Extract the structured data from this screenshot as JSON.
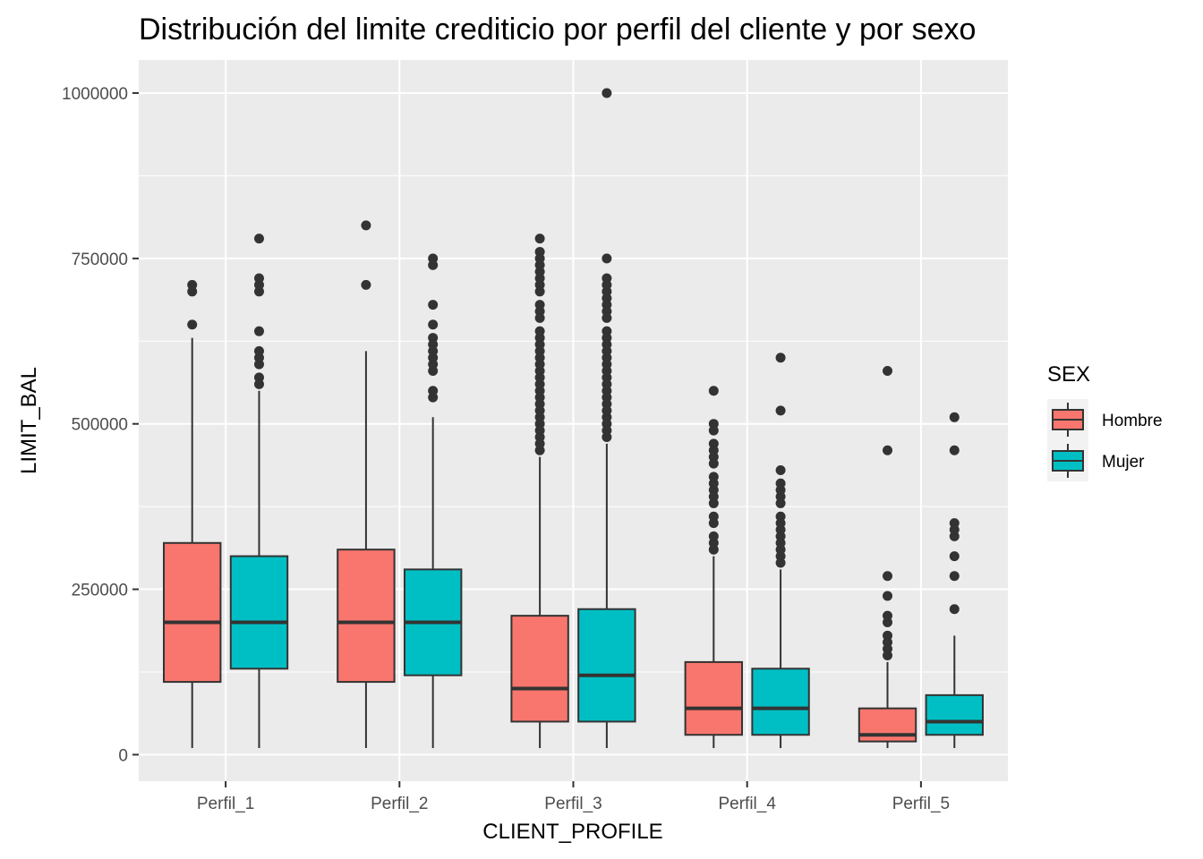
{
  "chart_data": {
    "type": "box",
    "title": "Distribución del limite crediticio por perfil del cliente y por sexo",
    "xlabel": "CLIENT_PROFILE",
    "ylabel": "LIMIT_BAL",
    "categories": [
      "Perfil_1",
      "Perfil_2",
      "Perfil_3",
      "Perfil_4",
      "Perfil_5"
    ],
    "y_ticks": [
      0,
      250000,
      500000,
      750000,
      1000000
    ],
    "y_tick_labels": [
      "0",
      "250000",
      "500000",
      "750000",
      "1000000"
    ],
    "ylim": [
      -40000,
      1050000
    ],
    "grid": true,
    "legend": {
      "title": "SEX",
      "position": "right",
      "entries": [
        {
          "label": "Hombre",
          "color": "#F8766D"
        },
        {
          "label": "Mujer",
          "color": "#00BFC4"
        }
      ]
    },
    "series": [
      {
        "name": "Hombre",
        "color": "#F8766D",
        "boxes": [
          {
            "category": "Perfil_1",
            "whisker_low": 10000,
            "q1": 110000,
            "median": 200000,
            "q3": 320000,
            "whisker_high": 630000,
            "outliers": [
              650000,
              700000,
              710000
            ]
          },
          {
            "category": "Perfil_2",
            "whisker_low": 10000,
            "q1": 110000,
            "median": 200000,
            "q3": 310000,
            "whisker_high": 610000,
            "outliers": [
              710000,
              800000
            ]
          },
          {
            "category": "Perfil_3",
            "whisker_low": 10000,
            "q1": 50000,
            "median": 100000,
            "q3": 210000,
            "whisker_high": 450000,
            "outliers": [
              460000,
              470000,
              480000,
              490000,
              500000,
              510000,
              520000,
              530000,
              540000,
              550000,
              560000,
              570000,
              580000,
              590000,
              600000,
              610000,
              620000,
              630000,
              640000,
              660000,
              670000,
              680000,
              700000,
              710000,
              720000,
              730000,
              740000,
              750000,
              760000,
              780000
            ]
          },
          {
            "category": "Perfil_4",
            "whisker_low": 10000,
            "q1": 30000,
            "median": 70000,
            "q3": 140000,
            "whisker_high": 300000,
            "outliers": [
              310000,
              320000,
              330000,
              350000,
              360000,
              380000,
              390000,
              400000,
              410000,
              420000,
              440000,
              450000,
              460000,
              470000,
              490000,
              500000,
              550000
            ]
          },
          {
            "category": "Perfil_5",
            "whisker_low": 10000,
            "q1": 20000,
            "median": 30000,
            "q3": 70000,
            "whisker_high": 140000,
            "outliers": [
              150000,
              160000,
              170000,
              180000,
              200000,
              210000,
              240000,
              270000,
              460000,
              580000
            ]
          }
        ]
      },
      {
        "name": "Mujer",
        "color": "#00BFC4",
        "boxes": [
          {
            "category": "Perfil_1",
            "whisker_low": 10000,
            "q1": 130000,
            "median": 200000,
            "q3": 300000,
            "whisker_high": 550000,
            "outliers": [
              560000,
              570000,
              590000,
              600000,
              610000,
              640000,
              700000,
              710000,
              720000,
              780000
            ]
          },
          {
            "category": "Perfil_2",
            "whisker_low": 10000,
            "q1": 120000,
            "median": 200000,
            "q3": 280000,
            "whisker_high": 510000,
            "outliers": [
              540000,
              550000,
              580000,
              590000,
              600000,
              610000,
              620000,
              630000,
              650000,
              680000,
              740000,
              750000
            ]
          },
          {
            "category": "Perfil_3",
            "whisker_low": 10000,
            "q1": 50000,
            "median": 120000,
            "q3": 220000,
            "whisker_high": 470000,
            "outliers": [
              480000,
              490000,
              500000,
              510000,
              520000,
              530000,
              540000,
              550000,
              560000,
              570000,
              580000,
              590000,
              600000,
              610000,
              620000,
              630000,
              640000,
              660000,
              670000,
              680000,
              690000,
              700000,
              710000,
              720000,
              750000,
              1000000
            ]
          },
          {
            "category": "Perfil_4",
            "whisker_low": 10000,
            "q1": 30000,
            "median": 70000,
            "q3": 130000,
            "whisker_high": 280000,
            "outliers": [
              290000,
              300000,
              310000,
              320000,
              330000,
              340000,
              350000,
              360000,
              380000,
              390000,
              400000,
              410000,
              430000,
              520000,
              600000
            ]
          },
          {
            "category": "Perfil_5",
            "whisker_low": 10000,
            "q1": 30000,
            "median": 50000,
            "q3": 90000,
            "whisker_high": 180000,
            "outliers": [
              220000,
              270000,
              300000,
              330000,
              340000,
              350000,
              460000,
              510000
            ]
          }
        ]
      }
    ]
  }
}
